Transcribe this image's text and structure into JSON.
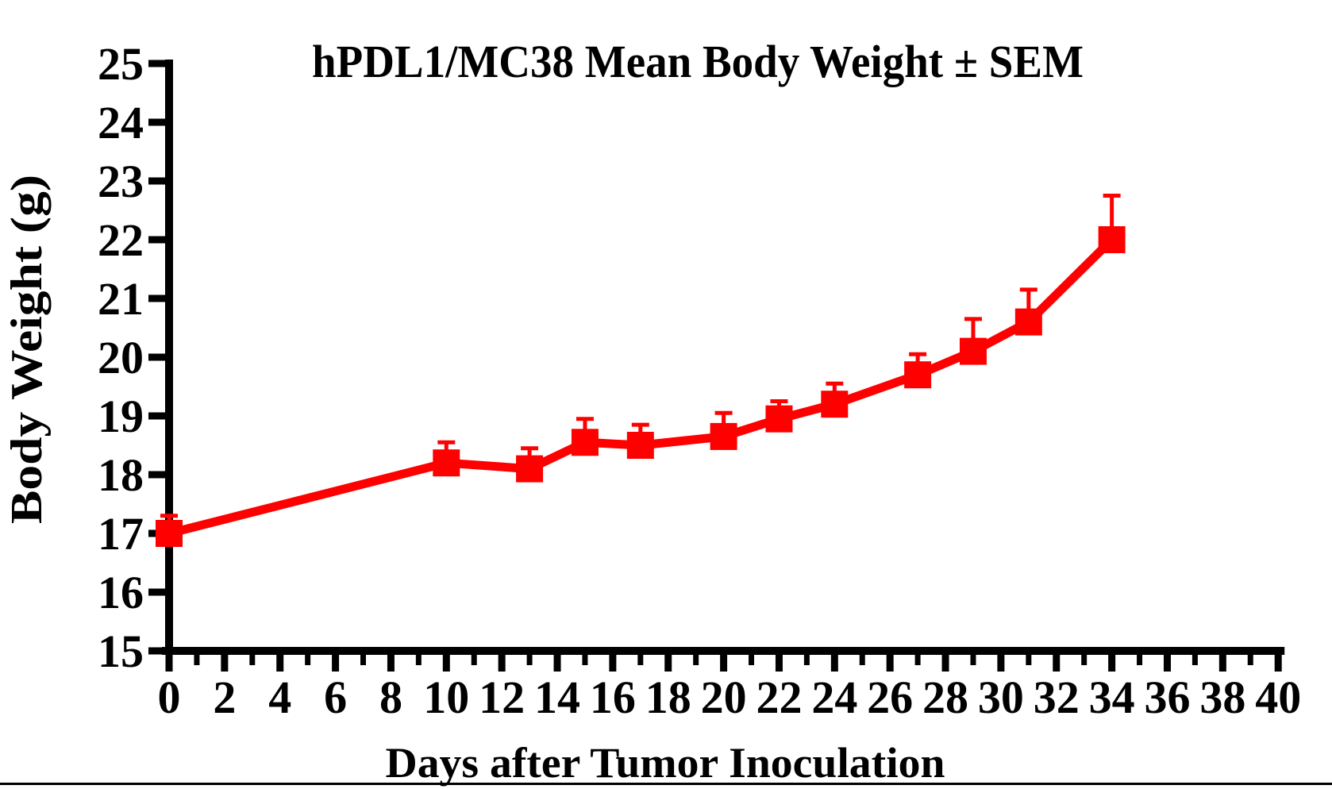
{
  "page": {
    "background": "#ffffff",
    "kind": "scientific line chart"
  },
  "colors": {
    "series": "#ff0000",
    "axis": "#000000",
    "background": "#ffffff"
  },
  "chart_data": {
    "type": "line",
    "title": "hPDL1/MC38 Mean Body Weight ± SEM",
    "xlabel": "Days after Tumor Inoculation",
    "ylabel": "Body Weight (g)",
    "xlim": [
      0,
      40
    ],
    "ylim": [
      15,
      25
    ],
    "x_major_ticks": [
      0,
      2,
      4,
      6,
      8,
      10,
      12,
      14,
      16,
      18,
      20,
      22,
      24,
      26,
      28,
      30,
      32,
      34,
      36,
      38,
      40
    ],
    "x_minor_ticks": [
      1,
      3,
      5,
      7,
      9,
      11,
      13,
      15,
      17,
      19,
      21,
      23,
      25,
      27,
      29,
      31,
      33,
      35,
      37,
      39
    ],
    "y_major_ticks": [
      15,
      16,
      17,
      18,
      19,
      20,
      21,
      22,
      23,
      24,
      25
    ],
    "grid": false,
    "legend": "none",
    "error_bars": "upper SEM only, capped",
    "series": [
      {
        "name": "hPDL1/MC38 mean body weight",
        "color": "#ff0000",
        "marker": "filled-square",
        "x": [
          0,
          10,
          13,
          15,
          17,
          20,
          22,
          24,
          27,
          29,
          31,
          34
        ],
        "values": [
          17.0,
          18.2,
          18.1,
          18.55,
          18.5,
          18.65,
          18.95,
          19.2,
          19.7,
          20.1,
          20.6,
          22.0
        ],
        "sem": [
          0.3,
          0.35,
          0.35,
          0.4,
          0.35,
          0.4,
          0.3,
          0.35,
          0.35,
          0.55,
          0.55,
          0.75
        ]
      }
    ]
  }
}
